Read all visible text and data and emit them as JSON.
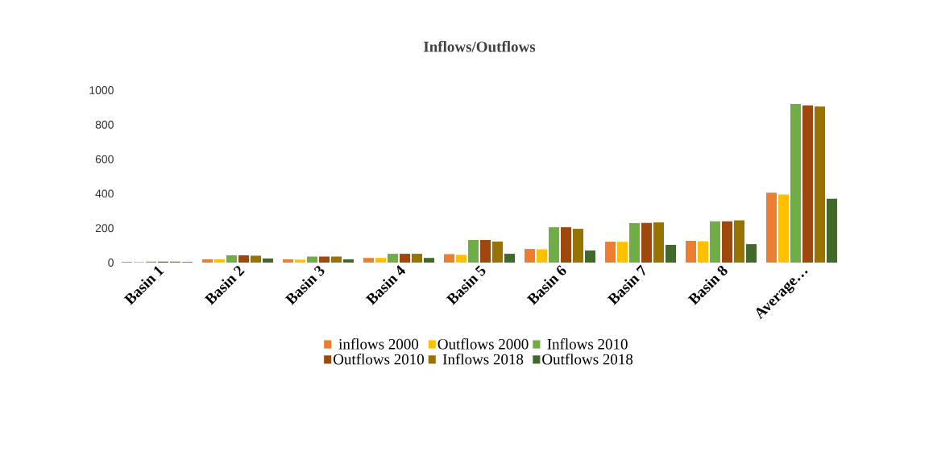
{
  "chart_data": {
    "type": "bar",
    "title": "Inflows/Outflows",
    "categories": [
      "Basin 1",
      "Basin 2",
      "Basin 3",
      "Basin 4",
      "Basin 5",
      "Basin 6",
      "Basin 7",
      "Basin 8",
      "Average…"
    ],
    "series": [
      {
        "name": "inflows 2000",
        "color": "#ed7d31",
        "values": [
          5,
          19,
          19,
          27,
          49,
          79,
          121,
          126,
          405
        ]
      },
      {
        "name": "Outflows 2000",
        "color": "#ffc000",
        "values": [
          5,
          19,
          17,
          27,
          45,
          77,
          120,
          124,
          395
        ]
      },
      {
        "name": "Inflows 2010",
        "color": "#70ad47",
        "values": [
          6,
          42,
          35,
          51,
          131,
          205,
          229,
          240,
          920
        ]
      },
      {
        "name": "Outflows 2010",
        "color": "#9e480e",
        "values": [
          6,
          42,
          35,
          51,
          131,
          205,
          230,
          240,
          912
        ]
      },
      {
        "name": "Inflows 2018",
        "color": "#997300",
        "values": [
          6,
          40,
          35,
          51,
          122,
          196,
          233,
          245,
          905
        ]
      },
      {
        "name": "Outflows 2018",
        "color": "#43682b",
        "values": [
          4,
          24,
          19,
          27,
          51,
          70,
          103,
          107,
          370
        ]
      }
    ],
    "ylim": [
      0,
      1000
    ],
    "yticks": [
      0,
      200,
      400,
      600,
      800,
      1000
    ],
    "grid": false,
    "legend": "bottom"
  }
}
